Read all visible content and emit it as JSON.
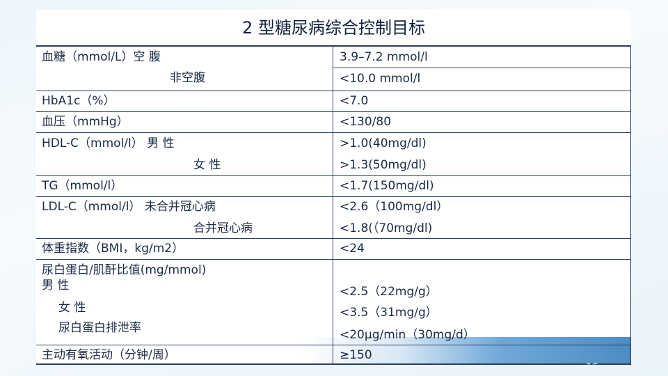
{
  "title": "2 型糖尿病综合控制目标",
  "page_number": "16",
  "rows": [
    {
      "label": "血糖（mmol/L）空 腹",
      "value": "3.9–7.2 mmol/l"
    },
    {
      "label": "非空腹",
      "value": "<10.0 mmol/l"
    },
    {
      "label": "HbA1c（%）",
      "value": "<7.0"
    },
    {
      "label": "血压（mmHg）",
      "value": "<130/80"
    },
    {
      "label": "HDL-C（mmol/l） 男 性",
      "value": ">1.0(40mg/dl)"
    },
    {
      "label": "女 性",
      "value": ">1.3(50mg/dl)"
    },
    {
      "label": "TG（mmol/l）",
      "value": "<1.7(150mg/dl)"
    },
    {
      "label": "LDL-C（mmol/l） 未合并冠心病",
      "value": "<2.6（100mg/dl）"
    },
    {
      "label": "合并冠心病",
      "value": "<1.8(（70mg/dl)"
    },
    {
      "label": "体重指数（BMI，kg/m2）",
      "value": "<24"
    },
    {
      "label": "尿白蛋白/肌酐比值(mg/mmol)",
      "value": ""
    },
    {
      "label": "男 性",
      "value": "<2.5（22mg/g）"
    },
    {
      "label": "女 性",
      "value": "<3.5（31mg/g）"
    },
    {
      "label": "尿白蛋白排泄率",
      "value": "<20μg/min（30mg/d）"
    },
    {
      "label": "主动有氧活动（分钟/周）",
      "value": "≥150"
    }
  ]
}
